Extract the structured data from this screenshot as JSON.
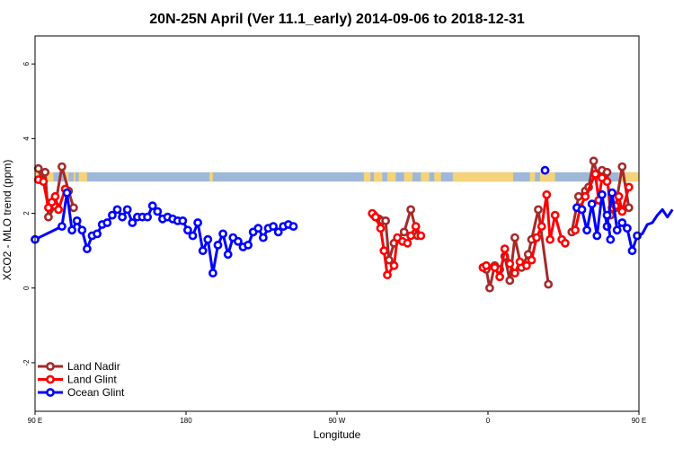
{
  "chart_data": {
    "type": "line",
    "title": "20N-25N April (Ver 11.1_early)   2014-09-06 to 2018-12-31",
    "xlabel": "Longitude",
    "ylabel": "XCO2 - MLO trend (ppm)",
    "xlim": [
      90,
      450
    ],
    "ylim": [
      -3.3,
      6.75
    ],
    "x_ticks": [
      {
        "value": 90,
        "label": "90 E"
      },
      {
        "value": 180,
        "label": "180"
      },
      {
        "value": 270,
        "label": "90 W"
      },
      {
        "value": 360,
        "label": "0"
      },
      {
        "value": 450,
        "label": "90 E"
      },
      {
        "value": 540,
        "label": "180"
      }
    ],
    "y_ticks": [
      -2,
      0,
      2,
      4,
      6
    ],
    "legend_position": "bottom-left",
    "land_band": {
      "y_range": [
        2.85,
        3.1
      ],
      "ocean_color": "#9fb8d8",
      "land_color": "#f5d37a",
      "land_segments": [
        [
          90,
          101
        ],
        [
          108,
          110
        ],
        [
          113,
          114
        ],
        [
          116,
          121
        ],
        [
          194,
          196
        ],
        [
          286,
          290
        ],
        [
          292,
          297
        ],
        [
          300,
          305
        ],
        [
          310,
          315
        ],
        [
          320,
          325
        ],
        [
          328,
          332
        ],
        [
          339,
          375
        ],
        [
          385,
          388
        ],
        [
          391,
          396
        ],
        [
          396,
          400
        ],
        [
          438,
          441
        ],
        [
          441,
          454
        ],
        [
          455,
          462
        ],
        [
          468,
          469
        ]
      ]
    },
    "series": [
      {
        "name": "Land Nadir",
        "color": "#a52a2a",
        "draw_order": 1,
        "segments": [
          [
            [
              92,
              3.2
            ],
            [
              94,
              2.9
            ],
            [
              96,
              3.1
            ],
            [
              98,
              1.9
            ],
            [
              102,
              2.2
            ],
            [
              106,
              3.25
            ],
            [
              110,
              2.6
            ],
            [
              113,
              2.15
            ]
          ],
          [
            [
              292,
              1.95
            ],
            [
              295,
              1.85
            ],
            [
              297,
              1.8
            ],
            [
              299,
              1.8
            ],
            [
              301,
              0.75
            ],
            [
              304,
              1.2
            ],
            [
              310,
              1.5
            ],
            [
              314,
              2.1
            ],
            [
              318,
              1.4
            ]
          ],
          [
            [
              359,
              0.5
            ],
            [
              361,
              0.0
            ],
            [
              364,
              0.6
            ],
            [
              367,
              0.5
            ],
            [
              370,
              0.85
            ],
            [
              373,
              0.2
            ],
            [
              376,
              1.35
            ],
            [
              380,
              0.55
            ],
            [
              384,
              0.9
            ],
            [
              386,
              1.3
            ],
            [
              390,
              2.1
            ],
            [
              396,
              0.1
            ]
          ],
          [
            [
              410,
              1.5
            ],
            [
              414,
              2.45
            ],
            [
              418,
              2.6
            ],
            [
              420,
              2.7
            ],
            [
              423,
              3.4
            ],
            [
              425,
              3.05
            ],
            [
              428,
              3.15
            ],
            [
              431,
              3.1
            ],
            [
              433,
              1.95
            ],
            [
              436,
              2.15
            ],
            [
              440,
              3.25
            ],
            [
              444,
              2.15
            ]
          ]
        ]
      },
      {
        "name": "Land Glint",
        "color": "#ff0000",
        "draw_order": 2,
        "segments": [
          [
            [
              92,
              2.9
            ],
            [
              95,
              2.85
            ],
            [
              98,
              2.15
            ],
            [
              100,
              2.3
            ],
            [
              102,
              2.45
            ],
            [
              104,
              2.1
            ],
            [
              108,
              2.65
            ]
          ],
          [
            [
              291,
              2.0
            ],
            [
              293,
              1.9
            ],
            [
              296,
              1.6
            ],
            [
              298,
              1.0
            ],
            [
              300,
              0.35
            ],
            [
              304,
              0.6
            ],
            [
              306,
              1.35
            ],
            [
              309,
              1.25
            ],
            [
              312,
              1.2
            ],
            [
              314,
              1.4
            ],
            [
              317,
              1.65
            ],
            [
              320,
              1.4
            ]
          ],
          [
            [
              357,
              0.55
            ],
            [
              359,
              0.6
            ],
            [
              364,
              0.55
            ],
            [
              367,
              0.3
            ],
            [
              370,
              1.05
            ],
            [
              373,
              0.65
            ],
            [
              376,
              0.4
            ],
            [
              379,
              0.7
            ],
            [
              383,
              0.6
            ],
            [
              386,
              0.75
            ],
            [
              389,
              1.35
            ],
            [
              392,
              1.65
            ],
            [
              395,
              2.5
            ],
            [
              397,
              1.3
            ],
            [
              400,
              1.95
            ],
            [
              404,
              1.3
            ],
            [
              406,
              1.2
            ]
          ],
          [
            [
              412,
              1.55
            ],
            [
              415,
              2.15
            ],
            [
              418,
              2.45
            ],
            [
              424,
              3.05
            ],
            [
              426,
              2.35
            ],
            [
              428,
              2.95
            ],
            [
              431,
              2.85
            ],
            [
              434,
              2.15
            ],
            [
              436,
              2.2
            ],
            [
              438,
              2.45
            ],
            [
              440,
              2.05
            ],
            [
              444,
              2.7
            ]
          ]
        ]
      },
      {
        "name": "Ocean Glint",
        "color": "#0000ff",
        "draw_order": 3,
        "segments": [
          [
            [
              90,
              1.3
            ],
            [
              106,
              1.65
            ],
            [
              109,
              2.55
            ],
            [
              112,
              1.55
            ],
            [
              115,
              1.8
            ],
            [
              118,
              1.55
            ],
            [
              121,
              1.05
            ],
            [
              124,
              1.4
            ],
            [
              127,
              1.45
            ],
            [
              130,
              1.7
            ],
            [
              133,
              1.75
            ],
            [
              136,
              1.95
            ],
            [
              139,
              2.1
            ],
            [
              142,
              1.9
            ],
            [
              145,
              2.1
            ],
            [
              148,
              1.75
            ],
            [
              151,
              1.9
            ],
            [
              154,
              1.9
            ],
            [
              157,
              1.9
            ],
            [
              160,
              2.2
            ],
            [
              163,
              2.05
            ],
            [
              166,
              1.85
            ],
            [
              169,
              1.9
            ],
            [
              172,
              1.85
            ],
            [
              175,
              1.8
            ],
            [
              178,
              1.8
            ],
            [
              181,
              1.55
            ],
            [
              184,
              1.4
            ],
            [
              187,
              1.75
            ],
            [
              190,
              1.0
            ],
            [
              193,
              1.3
            ],
            [
              196,
              0.4
            ],
            [
              199,
              1.15
            ],
            [
              202,
              1.45
            ],
            [
              205,
              0.9
            ],
            [
              208,
              1.35
            ],
            [
              211,
              1.25
            ],
            [
              214,
              1.1
            ],
            [
              217,
              1.15
            ],
            [
              220,
              1.5
            ],
            [
              223,
              1.6
            ],
            [
              226,
              1.35
            ],
            [
              229,
              1.6
            ],
            [
              232,
              1.65
            ],
            [
              235,
              1.5
            ],
            [
              238,
              1.65
            ],
            [
              241,
              1.7
            ],
            [
              244,
              1.65
            ]
          ],
          [
            [
              394,
              3.15
            ]
          ],
          [
            [
              413,
              2.15
            ],
            [
              416,
              2.1
            ],
            [
              419,
              1.55
            ],
            [
              422,
              2.25
            ],
            [
              425,
              1.4
            ],
            [
              428,
              2.5
            ],
            [
              431,
              1.65
            ],
            [
              434,
              2.55
            ],
            [
              437,
              1.55
            ],
            [
              440,
              1.75
            ],
            [
              443,
              1.6
            ],
            [
              446,
              1.0
            ],
            [
              449,
              1.4
            ],
            [
              452,
              1.45
            ],
            [
              455,
              1.7
            ],
            [
              458,
              1.75
            ],
            [
              461,
              1.95
            ],
            [
              464,
              2.1
            ],
            [
              467,
              1.9
            ],
            [
              470,
              2.1
            ]
          ],
          [
            [
              431,
              1.95
            ],
            [
              433,
              1.3
            ]
          ]
        ]
      }
    ]
  }
}
